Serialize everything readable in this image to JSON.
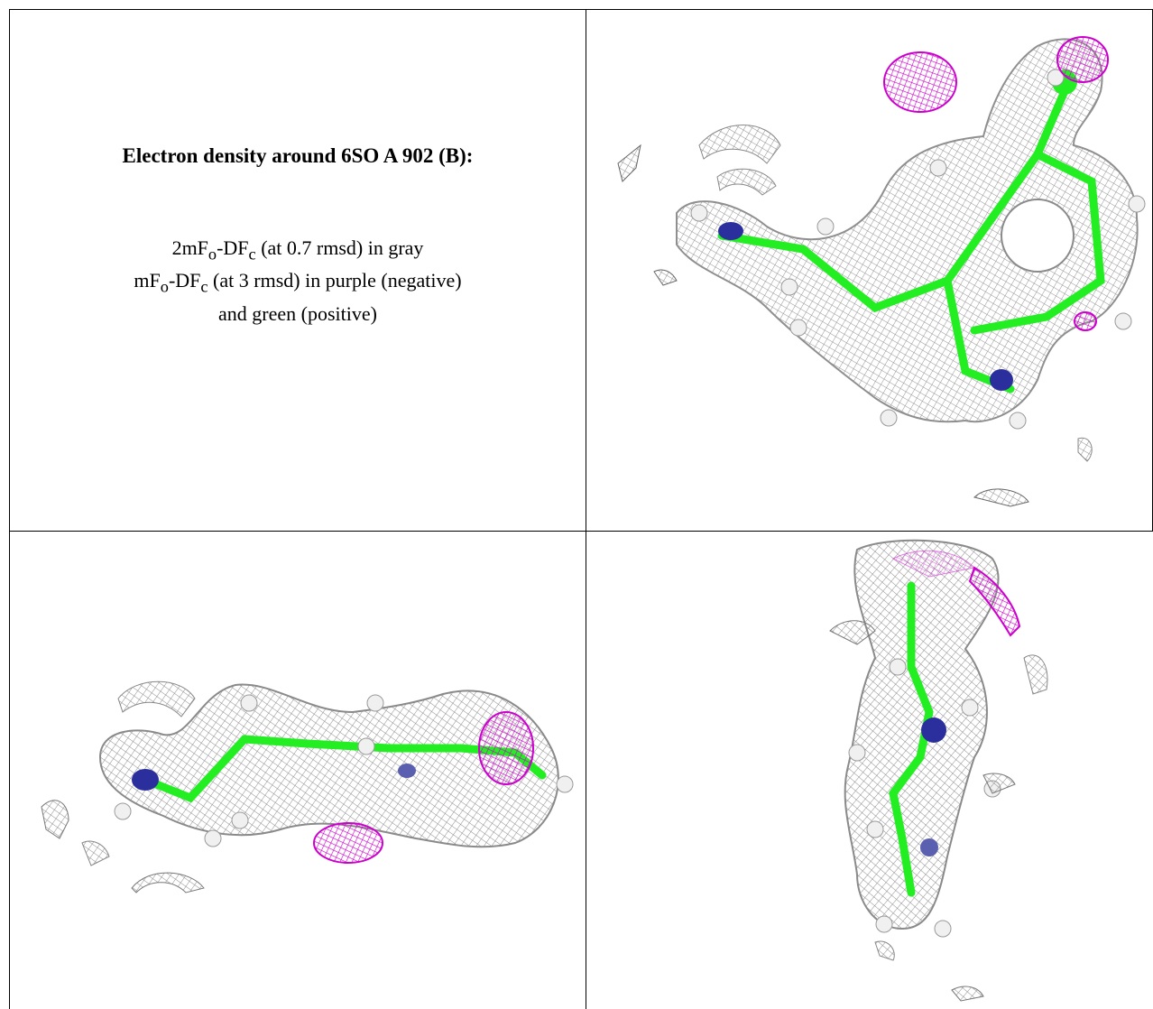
{
  "caption": {
    "title": "Electron density around 6SO A 902 (B):",
    "line1_prefix": "2mF",
    "line1_mid": "-DF",
    "line1_suffix": " (at 0.7 rmsd) in gray",
    "line2_prefix": "mF",
    "line2_mid": "-DF",
    "line2_suffix": " (at 3 rmsd) in purple (negative)",
    "line3": "and green (positive)",
    "sub_o": "o",
    "sub_c": "c"
  },
  "colors": {
    "mesh_gray": "#9a9a9a",
    "negative": "#cc00cc",
    "positive": "#22ee22",
    "nitrogen": "#2b2f9e",
    "hydrogen": "#e8e8e8"
  },
  "panels": [
    {
      "name": "view-top-right",
      "icon": "molecule-density-view"
    },
    {
      "name": "view-bottom-left",
      "icon": "molecule-density-view"
    },
    {
      "name": "view-bottom-right",
      "icon": "molecule-density-view"
    }
  ]
}
